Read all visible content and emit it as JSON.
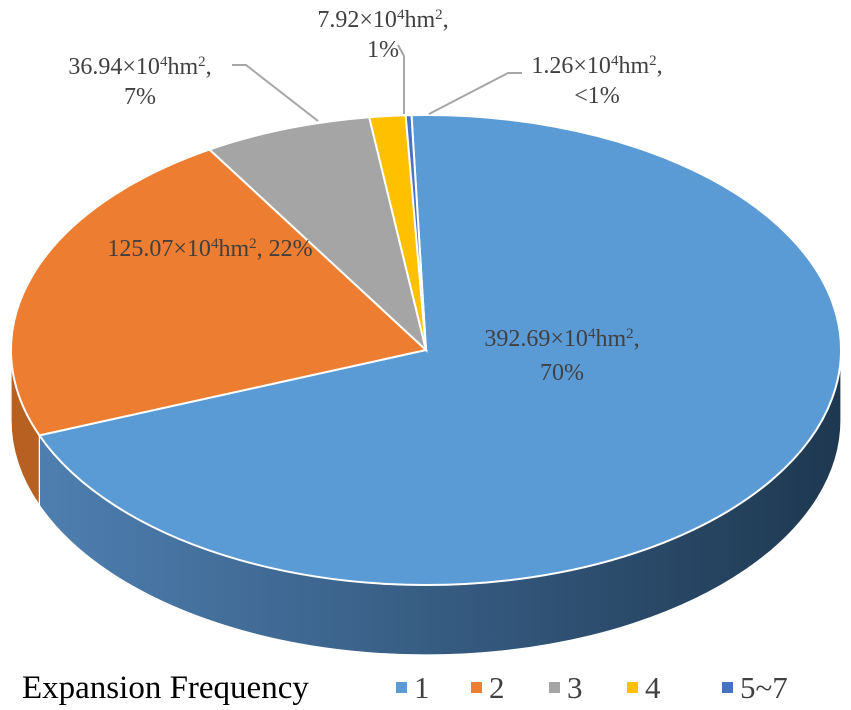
{
  "chart_data": {
    "type": "pie",
    "title": "",
    "style": "3d",
    "legend_placement": "bottom",
    "legend_title": "Expansion Frequency",
    "series": [
      {
        "category": "1",
        "value": 392.69,
        "percent": "70%",
        "color": "#5B9BD5",
        "side_color": "#2F5C87",
        "label_lines": [
          "392.69×10|4|hm|2|,",
          "70%"
        ]
      },
      {
        "category": "2",
        "value": 125.07,
        "percent": "22%",
        "color": "#ED7D31",
        "side_color": "#B85F22",
        "label_lines": [
          "125.07×10|4|hm|2|, 22%"
        ]
      },
      {
        "category": "3",
        "value": 36.94,
        "percent": "7%",
        "color": "#A5A5A5",
        "side_color": "#7A7A7A",
        "label_lines": [
          "36.94×10|4|hm|2|,",
          "7%"
        ]
      },
      {
        "category": "4",
        "value": 7.92,
        "percent": "1%",
        "color": "#FFC000",
        "side_color": "#C79600",
        "label_lines": [
          "7.92×10|4|hm|2|,",
          "1%"
        ]
      },
      {
        "category": "5~7",
        "value": 1.26,
        "percent": "<1%",
        "color": "#4472C4",
        "side_color": "#2E5290",
        "label_lines": [
          "1.26×10|4|hm|2|,",
          "<1%"
        ]
      }
    ]
  }
}
